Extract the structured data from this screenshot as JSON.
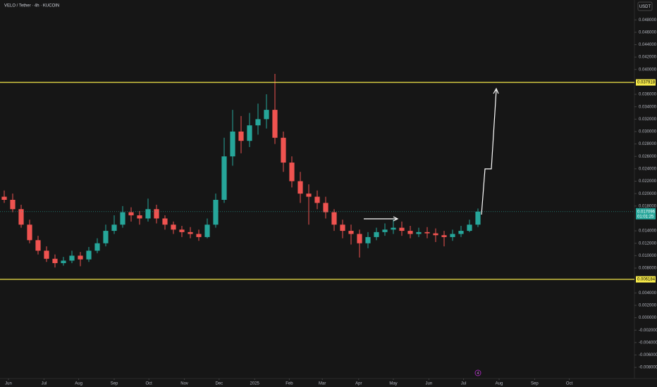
{
  "chart_data": {
    "type": "candlestick",
    "title": "VELO / Tether · 4h · KUCOIN",
    "currency": "USDT",
    "up_color": "#26a69a",
    "down_color": "#ef5350",
    "xlim": [
      -0.5,
      74.5
    ],
    "xticks": [
      {
        "value": 0.5,
        "label": "Jun"
      },
      {
        "value": 4.7,
        "label": "Jul"
      },
      {
        "value": 8.8,
        "label": "Aug"
      },
      {
        "value": 13,
        "label": "Sep"
      },
      {
        "value": 17.1,
        "label": "Oct"
      },
      {
        "value": 21.3,
        "label": "Nov"
      },
      {
        "value": 25.4,
        "label": "Dec"
      },
      {
        "value": 29.6,
        "label": "2025"
      },
      {
        "value": 33.7,
        "label": "Feb"
      },
      {
        "value": 37.6,
        "label": "Mar"
      },
      {
        "value": 41.9,
        "label": "Apr"
      },
      {
        "value": 46,
        "label": "May"
      },
      {
        "value": 50.2,
        "label": "Jun"
      },
      {
        "value": 54.3,
        "label": "Jul"
      },
      {
        "value": 58.5,
        "label": "Aug"
      },
      {
        "value": 62.7,
        "label": "Sep"
      },
      {
        "value": 66.8,
        "label": "Oct"
      }
    ],
    "ylim": [
      -0.0098,
      0.0512
    ],
    "yticks": [
      {
        "value": 0.048,
        "label": "0.048000"
      },
      {
        "value": 0.046,
        "label": "0.046000"
      },
      {
        "value": 0.044,
        "label": "0.044000"
      },
      {
        "value": 0.042,
        "label": "0.042000"
      },
      {
        "value": 0.04,
        "label": "0.040000"
      },
      {
        "value": 0.036,
        "label": "0.036000"
      },
      {
        "value": 0.034,
        "label": "0.034000"
      },
      {
        "value": 0.032,
        "label": "0.032000"
      },
      {
        "value": 0.03,
        "label": "0.030000"
      },
      {
        "value": 0.028,
        "label": "0.028000"
      },
      {
        "value": 0.026,
        "label": "0.026000"
      },
      {
        "value": 0.024,
        "label": "0.024000"
      },
      {
        "value": 0.022,
        "label": "0.022000"
      },
      {
        "value": 0.02,
        "label": "0.020000"
      },
      {
        "value": 0.018,
        "label": "0.018000"
      },
      {
        "value": 0.014,
        "label": "0.014000"
      },
      {
        "value": 0.012,
        "label": "0.012000"
      },
      {
        "value": 0.01,
        "label": "0.010000"
      },
      {
        "value": 0.008,
        "label": "0.008000"
      },
      {
        "value": 0.004,
        "label": "0.004000"
      },
      {
        "value": 0.002,
        "label": "0.002000"
      },
      {
        "value": 0,
        "label": "0.000000"
      },
      {
        "value": -0.002,
        "label": "-0.002000"
      },
      {
        "value": -0.004,
        "label": "-0.004000"
      },
      {
        "value": -0.006,
        "label": "-0.006000"
      },
      {
        "value": -0.008,
        "label": "-0.008000"
      }
    ],
    "grid": false,
    "open": [
      0.0195,
      0.019,
      0.0175,
      0.015,
      0.0125,
      0.0108,
      0.0095,
      0.0088,
      0.0092,
      0.01,
      0.0094,
      0.0108,
      0.012,
      0.014,
      0.015,
      0.017,
      0.0165,
      0.016,
      0.0175,
      0.016,
      0.015,
      0.0142,
      0.0138,
      0.0135,
      0.013,
      0.015,
      0.019,
      0.026,
      0.03,
      0.0285,
      0.031,
      0.032,
      0.0335,
      0.029,
      0.025,
      0.022,
      0.02,
      0.0195,
      0.0185,
      0.017,
      0.015,
      0.014,
      0.0135,
      0.012,
      0.013,
      0.0138,
      0.0142,
      0.0145,
      0.014,
      0.0135,
      0.0138,
      0.0136,
      0.0133,
      0.013,
      0.0135,
      0.014,
      0.015
    ],
    "high": [
      0.0205,
      0.02,
      0.0182,
      0.0158,
      0.0132,
      0.0115,
      0.0102,
      0.0098,
      0.0108,
      0.0106,
      0.0114,
      0.0128,
      0.015,
      0.0165,
      0.018,
      0.0178,
      0.0172,
      0.0192,
      0.0182,
      0.0165,
      0.0155,
      0.0148,
      0.0146,
      0.0142,
      0.016,
      0.02,
      0.029,
      0.0335,
      0.0325,
      0.033,
      0.0345,
      0.036,
      0.0393,
      0.03,
      0.026,
      0.0235,
      0.0215,
      0.0205,
      0.0195,
      0.0175,
      0.0158,
      0.015,
      0.0142,
      0.0138,
      0.0145,
      0.0152,
      0.0158,
      0.0155,
      0.0148,
      0.0145,
      0.0146,
      0.0144,
      0.014,
      0.0142,
      0.0148,
      0.0158,
      0.0176
    ],
    "low": [
      0.0185,
      0.017,
      0.0145,
      0.012,
      0.0102,
      0.009,
      0.0081,
      0.0084,
      0.0088,
      0.0083,
      0.009,
      0.0104,
      0.0115,
      0.0135,
      0.0145,
      0.0155,
      0.015,
      0.0155,
      0.0152,
      0.0142,
      0.0135,
      0.013,
      0.0128,
      0.0124,
      0.0128,
      0.0145,
      0.0185,
      0.0245,
      0.0265,
      0.0275,
      0.0295,
      0.0305,
      0.028,
      0.0235,
      0.021,
      0.0185,
      0.015,
      0.0175,
      0.016,
      0.014,
      0.0128,
      0.0118,
      0.0097,
      0.0112,
      0.0125,
      0.0132,
      0.0135,
      0.0132,
      0.0128,
      0.013,
      0.0128,
      0.0122,
      0.0115,
      0.0124,
      0.013,
      0.0138,
      0.0146
    ],
    "close": [
      0.019,
      0.0175,
      0.015,
      0.0125,
      0.0108,
      0.0095,
      0.0088,
      0.0092,
      0.01,
      0.0094,
      0.0108,
      0.012,
      0.014,
      0.015,
      0.017,
      0.0165,
      0.016,
      0.0175,
      0.016,
      0.015,
      0.0142,
      0.0138,
      0.0135,
      0.013,
      0.015,
      0.019,
      0.026,
      0.03,
      0.0285,
      0.031,
      0.032,
      0.0335,
      0.029,
      0.025,
      0.022,
      0.02,
      0.0195,
      0.0185,
      0.017,
      0.015,
      0.014,
      0.0135,
      0.012,
      0.013,
      0.0138,
      0.0142,
      0.0145,
      0.014,
      0.0135,
      0.0138,
      0.0136,
      0.0133,
      0.013,
      0.0135,
      0.014,
      0.015,
      0.0171
    ],
    "hlines": [
      {
        "value": 0.037918,
        "color": "#f5e94a"
      },
      {
        "value": 0.006184,
        "color": "#f5e94a"
      }
    ],
    "last_price": 0.017096,
    "countdown": "01:01:25",
    "event_marker": "4"
  }
}
